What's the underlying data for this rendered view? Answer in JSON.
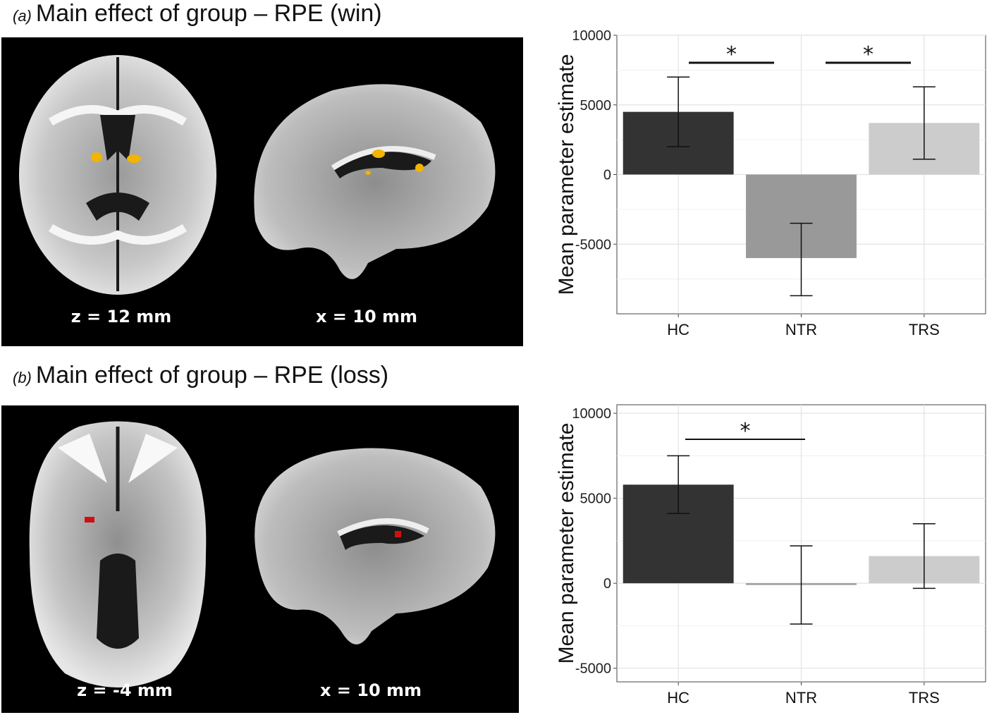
{
  "panels": [
    {
      "letter": "(a)",
      "title": "Main effect of group – RPE (win)",
      "slice_labels": [
        "z = 12 mm",
        "x = 10 mm"
      ],
      "blob_color": "#f2b400"
    },
    {
      "letter": "(b)",
      "title": "Main effect of group – RPE (loss)",
      "slice_labels": [
        "z = -4 mm",
        "x = 10 mm"
      ],
      "blob_color": "#d01010"
    }
  ],
  "chart_data": [
    {
      "type": "bar",
      "categories": [
        "HC",
        "NTR",
        "TRS"
      ],
      "values": [
        4500,
        -6000,
        3700
      ],
      "error_low": [
        2000,
        -8700,
        1100
      ],
      "error_high": [
        7000,
        -3500,
        6300
      ],
      "bar_colors": [
        "#333333",
        "#999999",
        "#cccccc"
      ],
      "ylabel": "Mean parameter estimate",
      "ylim": [
        -10000,
        10000
      ],
      "yticks": [
        10000,
        5000,
        0,
        -5000
      ],
      "ytick_labels": [
        "10000",
        "5000",
        "0",
        "-5000"
      ],
      "significance": [
        {
          "from": "HC",
          "to": "NTR",
          "label": "*"
        },
        {
          "from": "NTR",
          "to": "TRS",
          "label": "*"
        }
      ],
      "grid": true
    },
    {
      "type": "bar",
      "categories": [
        "HC",
        "NTR",
        "TRS"
      ],
      "values": [
        5800,
        -100,
        1600
      ],
      "error_low": [
        4100,
        -2400,
        -300
      ],
      "error_high": [
        7500,
        2200,
        3500
      ],
      "bar_colors": [
        "#333333",
        "#999999",
        "#cccccc"
      ],
      "ylabel": "Mean parameter estimate",
      "ylim": [
        -5800,
        10500
      ],
      "yticks": [
        10000,
        5000,
        0,
        -5000
      ],
      "ytick_labels": [
        "10000",
        "5000",
        "0",
        "-5000"
      ],
      "significance": [
        {
          "from": "HC",
          "to": "NTR",
          "label": "*"
        }
      ],
      "grid": true
    }
  ]
}
